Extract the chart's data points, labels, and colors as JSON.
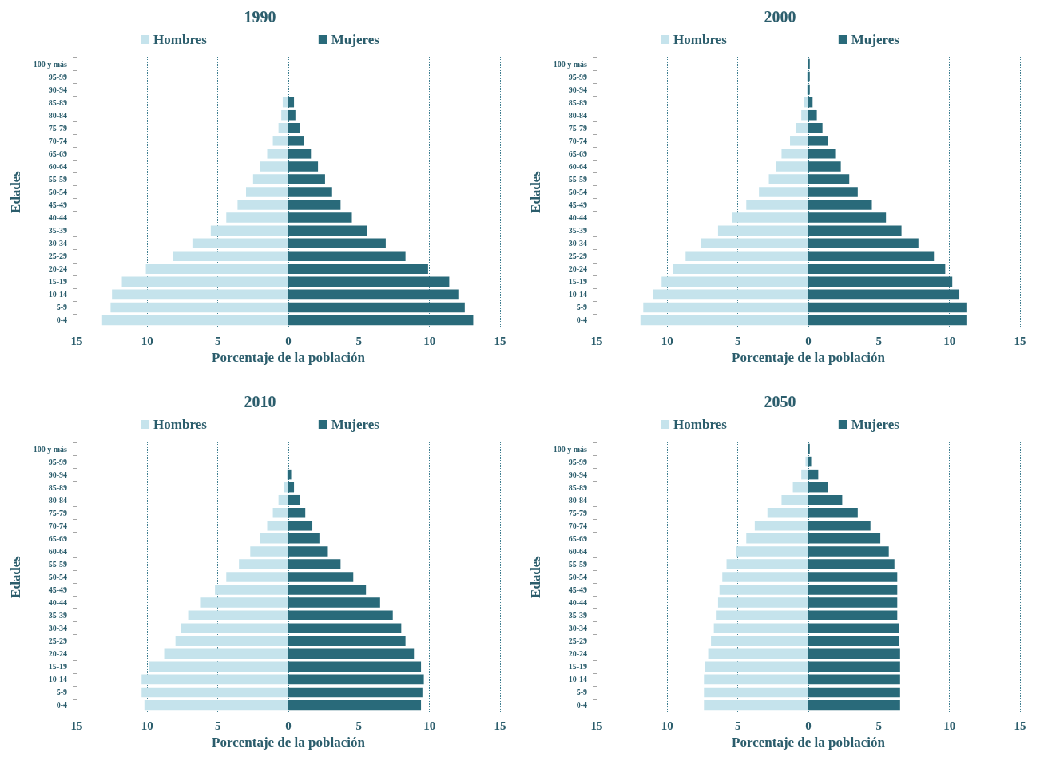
{
  "chart_data": [
    {
      "type": "bar",
      "orientation": "horizontal",
      "title": "1990",
      "stacked": true,
      "xlabel": "Porcentaje de la población",
      "ylabel": "Edades",
      "legend": "top",
      "grid": "x",
      "categories": [
        "100 y más",
        "95-99",
        "90-94",
        "85-89",
        "80-84",
        "75-79",
        "70-74",
        "65-69",
        "60-64",
        "55-59",
        "50-54",
        "45-49",
        "40-44",
        "35-39",
        "30-34",
        "25-29",
        "20-24",
        "15-19",
        "10-14",
        "5-9",
        "0-4"
      ],
      "xlim": [
        -15,
        15
      ],
      "xticks": [
        {
          "value": -15,
          "label": "15"
        },
        {
          "value": -10,
          "label": "10"
        },
        {
          "value": -5,
          "label": "5"
        },
        0,
        5,
        10,
        15
      ],
      "series": [
        {
          "name": "Hombres",
          "color": "#c5e3ec",
          "values": [
            0,
            0,
            0,
            -0.4,
            -0.5,
            -0.7,
            -1.1,
            -1.5,
            -2.0,
            -2.5,
            -3.0,
            -3.6,
            -4.4,
            -5.5,
            -6.8,
            -8.2,
            -10.1,
            -11.8,
            -12.5,
            -12.6,
            -13.2
          ]
        },
        {
          "name": "Mujeres",
          "color": "#296a7a",
          "values": [
            0,
            0,
            0,
            0.4,
            0.5,
            0.8,
            1.1,
            1.6,
            2.1,
            2.6,
            3.1,
            3.7,
            4.5,
            5.6,
            6.9,
            8.3,
            9.9,
            11.4,
            12.1,
            12.5,
            13.1
          ]
        }
      ]
    },
    {
      "type": "bar",
      "orientation": "horizontal",
      "title": "2000",
      "stacked": true,
      "xlabel": "Porcentaje de la población",
      "ylabel": "Edades",
      "legend": "top",
      "grid": "x",
      "categories": [
        "100 y más",
        "95-99",
        "90-94",
        "85-89",
        "80-84",
        "75-79",
        "70-74",
        "65-69",
        "60-64",
        "55-59",
        "50-54",
        "45-49",
        "40-44",
        "35-39",
        "30-34",
        "25-29",
        "20-24",
        "15-19",
        "10-14",
        "5-9",
        "0-4"
      ],
      "xlim": [
        -15,
        15
      ],
      "xticks": [
        {
          "value": -15,
          "label": "15"
        },
        {
          "value": -10,
          "label": "10"
        },
        {
          "value": -5,
          "label": "5"
        },
        0,
        5,
        10,
        15
      ],
      "series": [
        {
          "name": "Hombres",
          "color": "#c5e3ec",
          "values": [
            0,
            -0.1,
            -0.1,
            -0.3,
            -0.5,
            -0.9,
            -1.3,
            -1.9,
            -2.3,
            -2.8,
            -3.5,
            -4.4,
            -5.4,
            -6.4,
            -7.6,
            -8.7,
            -9.6,
            -10.4,
            -11.0,
            -11.7,
            -11.9
          ]
        },
        {
          "name": "Mujeres",
          "color": "#296a7a",
          "values": [
            0.1,
            0.1,
            0.1,
            0.3,
            0.6,
            1.0,
            1.4,
            1.9,
            2.3,
            2.9,
            3.5,
            4.5,
            5.5,
            6.6,
            7.8,
            8.9,
            9.7,
            10.2,
            10.7,
            11.2,
            11.2
          ]
        }
      ]
    },
    {
      "type": "bar",
      "orientation": "horizontal",
      "title": "2010",
      "stacked": true,
      "xlabel": "Porcentaje de la población",
      "ylabel": "Edades",
      "legend": "top",
      "grid": "x",
      "categories": [
        "100 y más",
        "95-99",
        "90-94",
        "85-89",
        "80-84",
        "75-79",
        "70-74",
        "65-69",
        "60-64",
        "55-59",
        "50-54",
        "45-49",
        "40-44",
        "35-39",
        "30-34",
        "25-29",
        "20-24",
        "15-19",
        "10-14",
        "5-9",
        "0-4"
      ],
      "xlim": [
        -15,
        15
      ],
      "xticks": [
        {
          "value": -15,
          "label": "15"
        },
        {
          "value": -10,
          "label": "10"
        },
        {
          "value": -5,
          "label": "5"
        },
        0,
        5,
        10,
        15
      ],
      "series": [
        {
          "name": "Hombres",
          "color": "#c5e3ec",
          "values": [
            0,
            0,
            -0.1,
            -0.3,
            -0.7,
            -1.1,
            -1.5,
            -2.0,
            -2.7,
            -3.5,
            -4.4,
            -5.2,
            -6.2,
            -7.1,
            -7.6,
            -8.0,
            -8.8,
            -9.9,
            -10.4,
            -10.4,
            -10.2
          ]
        },
        {
          "name": "Mujeres",
          "color": "#296a7a",
          "values": [
            0,
            0,
            0.2,
            0.4,
            0.8,
            1.2,
            1.7,
            2.2,
            2.8,
            3.7,
            4.6,
            5.5,
            6.5,
            7.4,
            8.0,
            8.3,
            8.9,
            9.4,
            9.6,
            9.5,
            9.4
          ]
        }
      ]
    },
    {
      "type": "bar",
      "orientation": "horizontal",
      "title": "2050",
      "stacked": true,
      "xlabel": "Porcentaje de la población",
      "ylabel": "Edades",
      "legend": "top",
      "grid": "x",
      "categories": [
        "100 y más",
        "95-99",
        "90-94",
        "85-89",
        "80-84",
        "75-79",
        "70-74",
        "65-69",
        "60-64",
        "55-59",
        "50-54",
        "45-49",
        "40-44",
        "35-39",
        "30-34",
        "25-29",
        "20-24",
        "15-19",
        "10-14",
        "5-9",
        "0-4"
      ],
      "xlim": [
        -15,
        15
      ],
      "xticks": [
        {
          "value": -15,
          "label": "15"
        },
        {
          "value": -10,
          "label": "10"
        },
        {
          "value": -5,
          "label": "5"
        },
        0,
        5,
        10,
        15
      ],
      "series": [
        {
          "name": "Hombres",
          "color": "#c5e3ec",
          "values": [
            0,
            -0.2,
            -0.5,
            -1.1,
            -1.9,
            -2.9,
            -3.8,
            -4.4,
            -5.1,
            -5.8,
            -6.1,
            -6.3,
            -6.4,
            -6.5,
            -6.7,
            -6.9,
            -7.1,
            -7.3,
            -7.4,
            -7.4,
            -7.4
          ]
        },
        {
          "name": "Mujeres",
          "color": "#296a7a",
          "values": [
            0.1,
            0.2,
            0.7,
            1.4,
            2.4,
            3.5,
            4.4,
            5.1,
            5.7,
            6.1,
            6.3,
            6.3,
            6.3,
            6.3,
            6.4,
            6.4,
            6.5,
            6.5,
            6.5,
            6.5,
            6.5
          ]
        }
      ]
    }
  ]
}
